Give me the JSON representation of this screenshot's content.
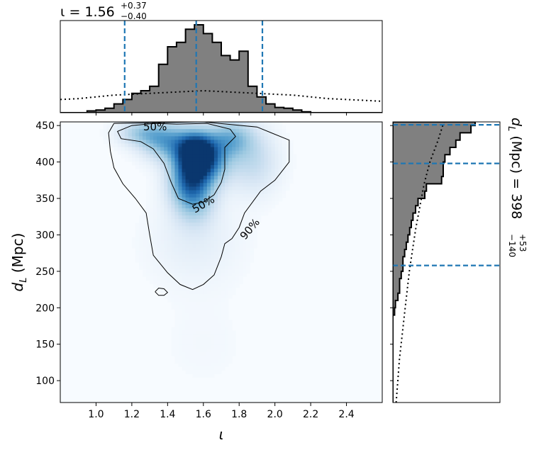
{
  "chart_data": {
    "type": "heatmap",
    "title": "",
    "xlabel": "ι",
    "ylabel": "d",
    "ylabel_sub": "L",
    "ylabel_unit": " (Mpc)",
    "xlim": [
      0.8,
      2.6
    ],
    "ylim": [
      70,
      455
    ],
    "x_ticks": [
      "1.0",
      "1.2",
      "1.4",
      "1.6",
      "1.8",
      "2.0",
      "2.2",
      "2.4"
    ],
    "y_ticks": [
      "100",
      "150",
      "200",
      "250",
      "300",
      "350",
      "400",
      "450"
    ],
    "x_marginal": {
      "summary": {
        "symbol": "ι",
        "eq": " = ",
        "value": "1.56",
        "plus": "+0.37",
        "minus": "−0.40"
      },
      "credible_lines": [
        1.16,
        1.56,
        1.93
      ],
      "bin_edges": [
        0.8,
        0.85,
        0.9,
        0.95,
        1.0,
        1.05,
        1.1,
        1.15,
        1.2,
        1.25,
        1.3,
        1.35,
        1.4,
        1.45,
        1.5,
        1.55,
        1.6,
        1.65,
        1.7,
        1.75,
        1.8,
        1.85,
        1.9,
        1.95,
        2.0,
        2.05,
        2.1,
        2.15,
        2.2,
        2.25,
        2.3,
        2.35,
        2.4,
        2.45,
        2.5,
        2.55,
        2.6
      ],
      "posterior_counts": [
        0.0,
        0.0,
        0.0,
        0.02,
        0.03,
        0.05,
        0.1,
        0.15,
        0.22,
        0.25,
        0.3,
        0.55,
        0.75,
        0.8,
        0.95,
        1.0,
        0.9,
        0.8,
        0.65,
        0.6,
        0.7,
        0.3,
        0.18,
        0.1,
        0.06,
        0.05,
        0.03,
        0.01,
        0.0,
        0.0,
        0.0,
        0.0,
        0.0,
        0.0,
        0.0,
        0.0
      ],
      "prior_x": [
        0.8,
        0.9,
        1.0,
        1.1,
        1.2,
        1.3,
        1.4,
        1.5,
        1.6,
        1.7,
        1.8,
        1.9,
        2.0,
        2.1,
        2.2,
        2.3,
        2.4,
        2.5,
        2.6
      ],
      "prior_y": [
        0.15,
        0.16,
        0.18,
        0.2,
        0.21,
        0.22,
        0.23,
        0.24,
        0.25,
        0.24,
        0.23,
        0.22,
        0.21,
        0.2,
        0.18,
        0.16,
        0.15,
        0.14,
        0.13
      ]
    },
    "y_marginal": {
      "summary": {
        "symbol": "d",
        "sub": "L",
        "unit": " (Mpc)",
        "eq": " = ",
        "value": "398",
        "plus": "+53",
        "minus": "−140"
      },
      "credible_lines": [
        258,
        398,
        451
      ],
      "bin_edges": [
        70,
        80,
        90,
        100,
        110,
        120,
        130,
        140,
        150,
        160,
        170,
        180,
        190,
        200,
        210,
        220,
        230,
        240,
        250,
        260,
        270,
        280,
        290,
        300,
        310,
        320,
        330,
        340,
        350,
        360,
        370,
        380,
        390,
        400,
        410,
        420,
        430,
        440,
        450,
        455
      ],
      "posterior_counts": [
        0.0,
        0.0,
        0.0,
        0.0,
        0.0,
        0.0,
        0.0,
        0.0,
        0.0,
        0.0,
        0.0,
        0.0,
        0.02,
        0.03,
        0.06,
        0.08,
        0.08,
        0.1,
        0.12,
        0.12,
        0.14,
        0.16,
        0.18,
        0.2,
        0.22,
        0.24,
        0.27,
        0.3,
        0.38,
        0.4,
        0.58,
        0.6,
        0.6,
        0.62,
        0.68,
        0.75,
        0.8,
        0.93,
        0.98
      ],
      "prior_y": [
        70,
        100,
        130,
        160,
        190,
        220,
        250,
        280,
        310,
        340,
        370,
        400,
        430,
        455
      ],
      "prior_x": [
        0.04,
        0.06,
        0.08,
        0.11,
        0.14,
        0.17,
        0.2,
        0.24,
        0.28,
        0.33,
        0.38,
        0.45,
        0.55,
        0.62
      ]
    },
    "density_blobs": [
      {
        "x": 1.56,
        "y": 415,
        "sx": 0.07,
        "sy": 18,
        "w": 1.0
      },
      {
        "x": 1.52,
        "y": 380,
        "sx": 0.08,
        "sy": 25,
        "w": 0.75
      },
      {
        "x": 1.62,
        "y": 400,
        "sx": 0.09,
        "sy": 22,
        "w": 0.7
      },
      {
        "x": 1.4,
        "y": 428,
        "sx": 0.1,
        "sy": 18,
        "w": 0.65
      },
      {
        "x": 1.75,
        "y": 432,
        "sx": 0.09,
        "sy": 18,
        "w": 0.55
      },
      {
        "x": 1.25,
        "y": 440,
        "sx": 0.09,
        "sy": 12,
        "w": 0.4
      },
      {
        "x": 1.55,
        "y": 350,
        "sx": 0.08,
        "sy": 25,
        "w": 0.45
      },
      {
        "x": 1.88,
        "y": 400,
        "sx": 0.1,
        "sy": 30,
        "w": 0.3
      },
      {
        "x": 1.55,
        "y": 290,
        "sx": 0.18,
        "sy": 40,
        "w": 0.12
      },
      {
        "x": 1.6,
        "y": 150,
        "sx": 0.2,
        "sy": 50,
        "w": 0.03
      }
    ],
    "contours": [
      {
        "label": "50%",
        "label_pos": [
          {
            "x": 1.33,
            "y": 448,
            "rot": 0
          },
          {
            "x": 1.6,
            "y": 342,
            "rot": -30
          }
        ],
        "points": [
          [
            1.33,
            453
          ],
          [
            1.45,
            452
          ],
          [
            1.62,
            453
          ],
          [
            1.75,
            445
          ],
          [
            1.78,
            435
          ],
          [
            1.72,
            420
          ],
          [
            1.72,
            390
          ],
          [
            1.7,
            372
          ],
          [
            1.66,
            355
          ],
          [
            1.6,
            345
          ],
          [
            1.54,
            342
          ],
          [
            1.46,
            350
          ],
          [
            1.42,
            372
          ],
          [
            1.38,
            398
          ],
          [
            1.32,
            418
          ],
          [
            1.25,
            428
          ],
          [
            1.14,
            432
          ],
          [
            1.12,
            442
          ],
          [
            1.2,
            450
          ],
          [
            1.33,
            453
          ]
        ]
      },
      {
        "label": "90%",
        "label_pos": [
          {
            "x": 1.86,
            "y": 308,
            "rot": -50
          }
        ],
        "points": [
          [
            1.1,
            453
          ],
          [
            1.6,
            455
          ],
          [
            1.9,
            448
          ],
          [
            2.08,
            430
          ],
          [
            2.08,
            400
          ],
          [
            2.0,
            375
          ],
          [
            1.92,
            360
          ],
          [
            1.83,
            330
          ],
          [
            1.8,
            310
          ],
          [
            1.76,
            295
          ],
          [
            1.72,
            288
          ],
          [
            1.7,
            270
          ],
          [
            1.66,
            245
          ],
          [
            1.6,
            232
          ],
          [
            1.54,
            225
          ],
          [
            1.47,
            232
          ],
          [
            1.4,
            248
          ],
          [
            1.32,
            272
          ],
          [
            1.3,
            300
          ],
          [
            1.28,
            330
          ],
          [
            1.22,
            350
          ],
          [
            1.15,
            370
          ],
          [
            1.1,
            392
          ],
          [
            1.08,
            415
          ],
          [
            1.07,
            440
          ],
          [
            1.1,
            453
          ]
        ]
      },
      {
        "label": "",
        "label_pos": [],
        "points": [
          [
            1.33,
            222
          ],
          [
            1.35,
            217
          ],
          [
            1.38,
            217
          ],
          [
            1.4,
            221
          ],
          [
            1.38,
            226
          ],
          [
            1.35,
            227
          ],
          [
            1.33,
            222
          ]
        ]
      }
    ]
  }
}
